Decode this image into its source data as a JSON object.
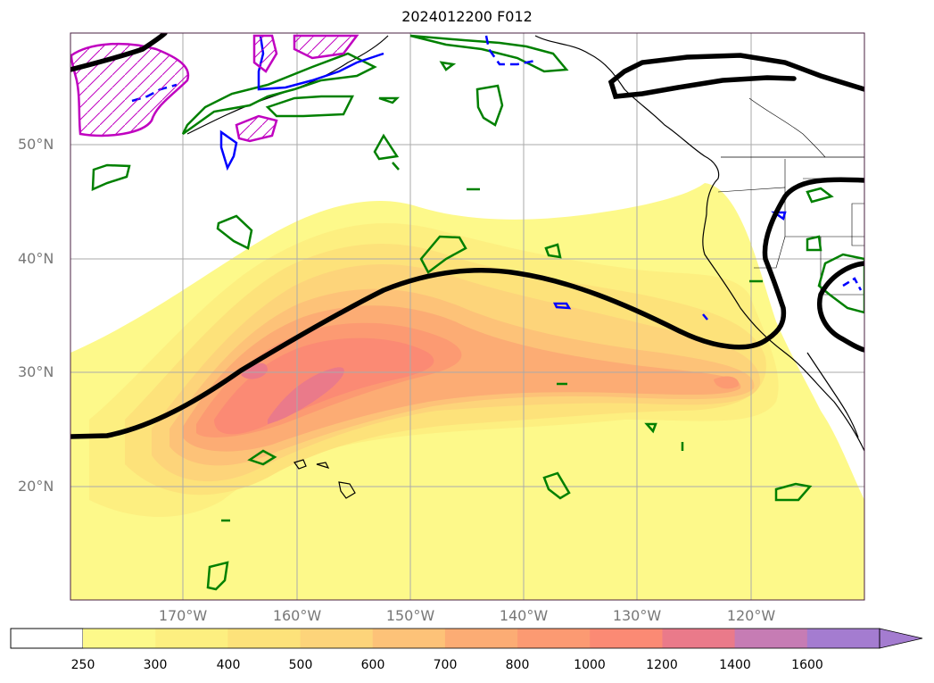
{
  "title": "2024012200 F012",
  "lat_labels": [
    "50°N",
    "40°N",
    "30°N",
    "20°N"
  ],
  "lon_labels": [
    "170°W",
    "160°W",
    "150°W",
    "140°W",
    "130°W",
    "120°W"
  ],
  "colorbar": {
    "levels": [
      "250",
      "300",
      "400",
      "500",
      "600",
      "700",
      "800",
      "1000",
      "1200",
      "1400",
      "1600"
    ],
    "colors": [
      "#fdf98a",
      "#fdef80",
      "#fde27a",
      "#fdd47a",
      "#fdc278",
      "#fcac74",
      "#fc9a72",
      "#fb8a74",
      "#ea7a8a",
      "#c67cb4",
      "#a47cd0"
    ],
    "extend": "max"
  },
  "colors": {
    "jet_line": "#000000",
    "green_contours": "#008000",
    "blue_contours": "#0000ff",
    "magenta_hatched": "#c000c0",
    "coastline": "#000000",
    "gridline": "#aaaaaa"
  }
}
